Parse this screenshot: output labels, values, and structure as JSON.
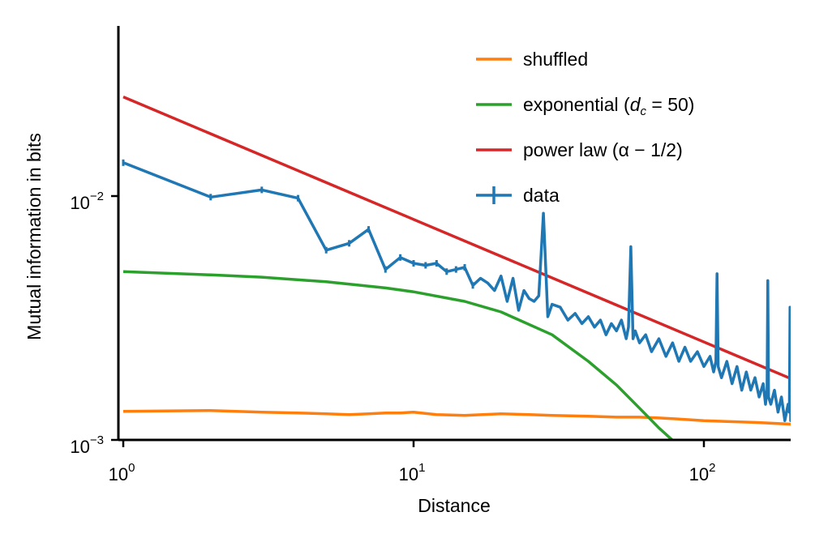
{
  "chart_data": {
    "type": "line",
    "title": "",
    "xlabel": "Distance",
    "ylabel": "Mutual information in bits",
    "xscale": "log",
    "yscale": "log",
    "xlim": [
      1,
      200
    ],
    "ylim": [
      0.001,
      0.045
    ],
    "x_ticks": [
      {
        "value": 1,
        "base": "10",
        "exp": "0"
      },
      {
        "value": 10,
        "base": "10",
        "exp": "1"
      },
      {
        "value": 100,
        "base": "10",
        "exp": "2"
      }
    ],
    "y_ticks": [
      {
        "value": 0.001,
        "base": "10",
        "exp": "−3"
      },
      {
        "value": 0.01,
        "base": "10",
        "exp": "−2"
      }
    ],
    "grid": false,
    "legend_position": "top-right",
    "series": [
      {
        "name": "shuffled",
        "color": "#ff7f0e",
        "x": [
          1,
          2,
          3,
          4,
          5,
          6,
          7,
          8,
          9,
          10,
          12,
          15,
          20,
          25,
          30,
          40,
          50,
          60,
          70,
          80,
          100,
          120,
          150,
          200
        ],
        "y": [
          0.00131,
          0.00132,
          0.0013,
          0.00129,
          0.00128,
          0.00127,
          0.00128,
          0.00129,
          0.00129,
          0.0013,
          0.00127,
          0.00126,
          0.00128,
          0.00127,
          0.00126,
          0.00125,
          0.00124,
          0.00124,
          0.00123,
          0.00122,
          0.0012,
          0.00119,
          0.00118,
          0.00116
        ]
      },
      {
        "name": "exponential (d_c = 50)",
        "color": "#2ca02c",
        "model": "exponential",
        "d_c": 50,
        "x": [
          1,
          2,
          3,
          5,
          8,
          10,
          15,
          20,
          30,
          40,
          50,
          60,
          70,
          80
        ],
        "y": [
          0.0049,
          0.00475,
          0.00465,
          0.00445,
          0.0042,
          0.00405,
          0.0037,
          0.00335,
          0.0027,
          0.0021,
          0.00168,
          0.00135,
          0.00112,
          0.00097
        ]
      },
      {
        "name": "power law (α − 1/2)",
        "color": "#d62728",
        "model": "power",
        "x": [
          1,
          200
        ],
        "y": [
          0.0255,
          0.00178
        ]
      },
      {
        "name": "data",
        "color": "#1f77b4",
        "x": [
          1,
          2,
          3,
          4,
          5,
          6,
          7,
          8,
          9,
          10,
          11,
          12,
          13,
          14,
          15,
          16,
          17,
          18,
          19,
          20,
          21,
          22,
          23,
          24,
          25,
          26,
          27,
          28,
          29,
          30,
          32,
          34,
          36,
          38,
          40,
          42,
          44,
          46,
          48,
          50,
          52,
          54,
          55,
          56,
          57,
          58,
          60,
          63,
          66,
          70,
          74,
          78,
          82,
          86,
          90,
          95,
          100,
          105,
          108,
          110,
          111,
          112,
          115,
          120,
          125,
          130,
          135,
          140,
          145,
          150,
          155,
          160,
          163,
          165,
          166,
          167,
          170,
          175,
          180,
          185,
          190,
          195,
          197,
          198,
          199,
          200
        ],
        "y": [
          0.0137,
          0.0099,
          0.0106,
          0.0098,
          0.006,
          0.0064,
          0.0073,
          0.005,
          0.0056,
          0.0053,
          0.0052,
          0.0053,
          0.0049,
          0.005,
          0.0051,
          0.0043,
          0.0046,
          0.0044,
          0.0041,
          0.0047,
          0.0037,
          0.0046,
          0.0034,
          0.0041,
          0.0038,
          0.0037,
          0.0039,
          0.0085,
          0.0032,
          0.0036,
          0.0035,
          0.0031,
          0.0033,
          0.003,
          0.0032,
          0.0029,
          0.0031,
          0.0027,
          0.003,
          0.0028,
          0.0031,
          0.0026,
          0.0029,
          0.0062,
          0.0026,
          0.0028,
          0.0025,
          0.0027,
          0.0023,
          0.0026,
          0.0022,
          0.0025,
          0.0021,
          0.0024,
          0.0021,
          0.0023,
          0.002,
          0.0022,
          0.0019,
          0.0021,
          0.0048,
          0.002,
          0.0018,
          0.0021,
          0.0017,
          0.002,
          0.0016,
          0.0019,
          0.0016,
          0.0018,
          0.0015,
          0.0017,
          0.0014,
          0.0016,
          0.0045,
          0.0015,
          0.0014,
          0.0016,
          0.0013,
          0.0015,
          0.0012,
          0.0014,
          0.0013,
          0.0035,
          0.0012,
          0.0013
        ]
      }
    ]
  }
}
